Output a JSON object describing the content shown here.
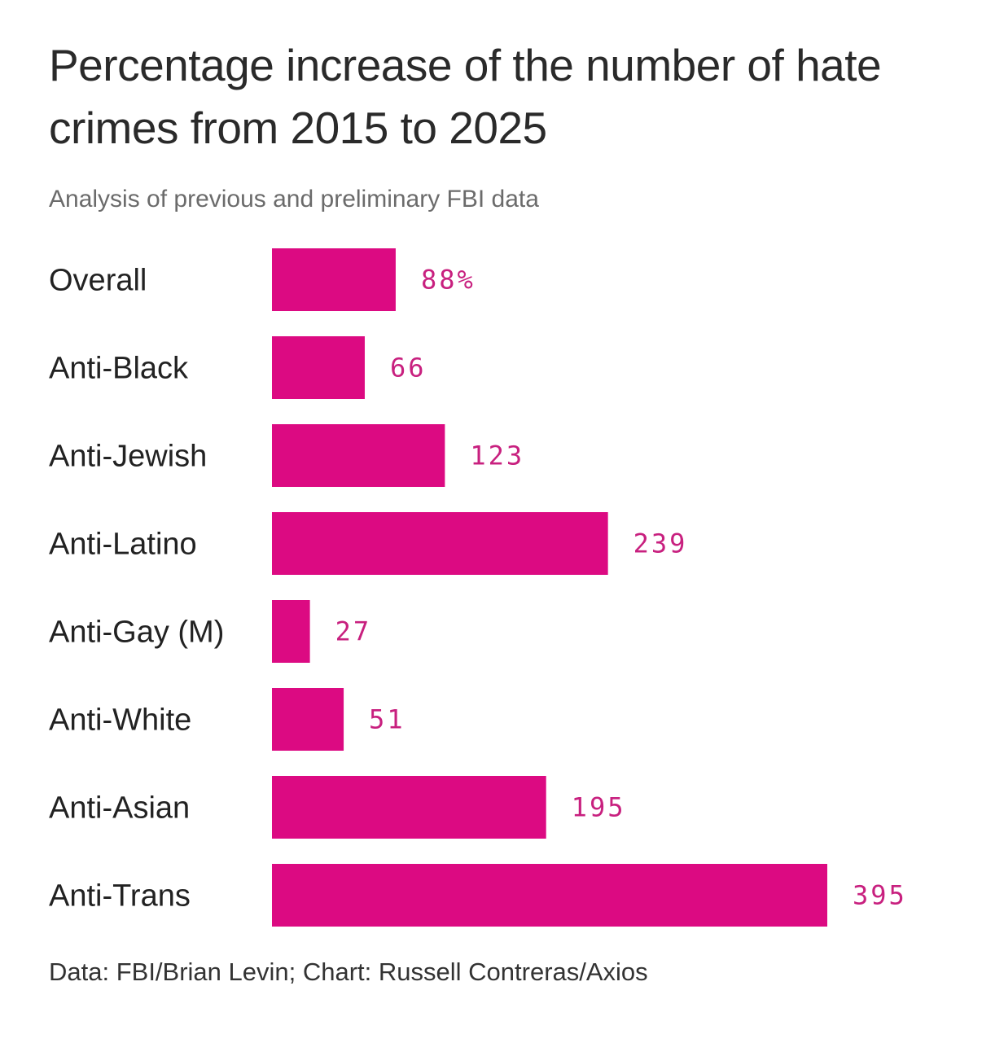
{
  "chart_data": {
    "type": "bar",
    "orientation": "horizontal",
    "title": "Percentage increase of the number of hate crimes from 2015 to 2025",
    "subtitle": "Analysis of previous and preliminary FBI data",
    "categories": [
      "Overall",
      "Anti-Black",
      "Anti-Jewish",
      "Anti-Latino",
      "Anti-Gay (M)",
      "Anti-White",
      "Anti-Asian",
      "Anti-Trans"
    ],
    "values": [
      88,
      66,
      123,
      239,
      27,
      51,
      195,
      395
    ],
    "value_labels": [
      "88%",
      "66",
      "123",
      "239",
      "27",
      "51",
      "195",
      "395"
    ],
    "xlim": [
      0,
      395
    ],
    "grid": false,
    "bar_color": "#dc0a82",
    "label_color": "#c8207f",
    "source": "Data: FBI/Brian Levin; Chart: Russell Contreras/Axios"
  }
}
